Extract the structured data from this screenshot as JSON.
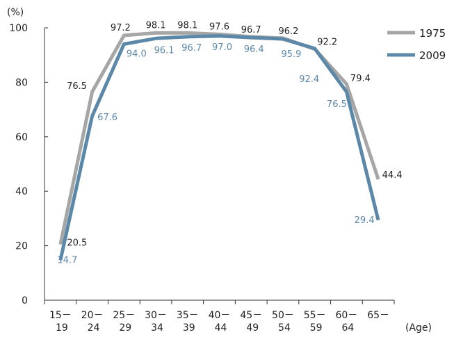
{
  "chart_data": {
    "type": "line",
    "y_unit_label": "(%)",
    "x_unit_label": "(Age)",
    "categories": [
      [
        "15－",
        "19"
      ],
      [
        "20－",
        "24"
      ],
      [
        "25－",
        "29"
      ],
      [
        "30－",
        "34"
      ],
      [
        "35－",
        "39"
      ],
      [
        "40－",
        "44"
      ],
      [
        "45－",
        "49"
      ],
      [
        "50－",
        "54"
      ],
      [
        "55－",
        "59"
      ],
      [
        "60－",
        "64"
      ],
      [
        "65－",
        ""
      ]
    ],
    "ylim": [
      0,
      100
    ],
    "yticks": [
      0,
      20,
      40,
      60,
      80,
      100
    ],
    "legend_position": "top-right",
    "series": [
      {
        "name": "1975",
        "color": "#a6a6a6",
        "label_color": "#222222",
        "values": [
          20.5,
          76.5,
          97.2,
          98.1,
          98.1,
          97.6,
          96.7,
          96.2,
          92.2,
          79.4,
          44.4
        ],
        "value_labels": [
          "20.5",
          "76.5",
          "97.2",
          "98.1",
          "98.1",
          "97.6",
          "96.7",
          "96.2",
          "92.2",
          "79.4",
          "44.4"
        ]
      },
      {
        "name": "2009",
        "color": "#5b87a8",
        "label_color": "#5b87a8",
        "values": [
          14.7,
          67.6,
          94.0,
          96.1,
          96.7,
          97.0,
          96.4,
          95.9,
          92.4,
          76.5,
          29.4
        ],
        "value_labels": [
          "14.7",
          "67.6",
          "94.0",
          "96.1",
          "96.7",
          "97.0",
          "96.4",
          "95.9",
          "92.4",
          "76.5",
          "29.4"
        ]
      }
    ]
  }
}
